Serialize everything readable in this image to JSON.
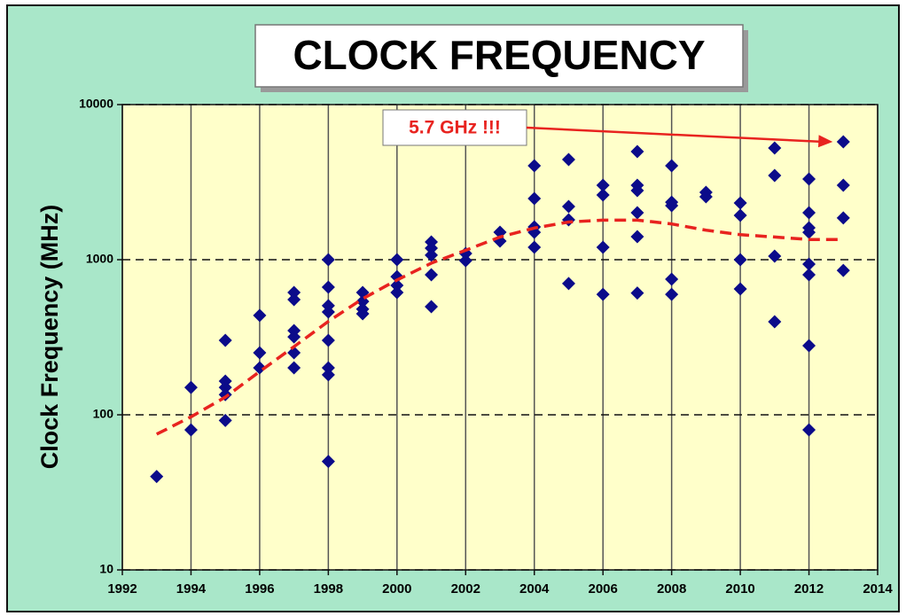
{
  "chart_data": {
    "type": "scatter",
    "title": "CLOCK FREQUENCY",
    "ylabel": "Clock Frequency (MHz)",
    "log_y": true,
    "grid": true,
    "xlim": [
      1992,
      2014
    ],
    "xticks": [
      1992,
      1994,
      1996,
      1998,
      2000,
      2002,
      2004,
      2006,
      2008,
      2010,
      2012,
      2014
    ],
    "ylim": [
      10,
      10000
    ],
    "yticks": [
      10,
      100,
      1000,
      10000
    ],
    "series": [
      {
        "color": "#0b0b8a",
        "marker": "diamond",
        "x": [
          1993,
          1994,
          1994,
          1995,
          1995,
          1995,
          1995,
          1995,
          1996,
          1996,
          1996,
          1997,
          1997,
          1997,
          1997,
          1997,
          1997,
          1998,
          1998,
          1998,
          1998,
          1998,
          1998,
          1998,
          1998,
          1999,
          1999,
          1999,
          1999,
          2000,
          2000,
          2000,
          2000,
          2001,
          2001,
          2001,
          2001,
          2001,
          2002,
          2002,
          2003,
          2003,
          2004,
          2004,
          2004,
          2004,
          2004,
          2005,
          2005,
          2005,
          2005,
          2006,
          2006,
          2006,
          2006,
          2007,
          2007,
          2007,
          2007,
          2007,
          2007,
          2008,
          2008,
          2008,
          2008,
          2008,
          2009,
          2009,
          2010,
          2010,
          2010,
          2010,
          2011,
          2011,
          2011,
          2011,
          2012,
          2012,
          2012,
          2012,
          2012,
          2012,
          2012,
          2012,
          2013,
          2013,
          2013,
          2013
        ],
        "values": [
          40,
          150,
          80,
          302,
          165,
          150,
          135,
          92,
          437,
          251,
          201,
          615,
          553,
          349,
          318,
          251,
          201,
          1000,
          665,
          505,
          460,
          302,
          201,
          181,
          50,
          615,
          538,
          480,
          448,
          1000,
          778,
          683,
          615,
          1300,
          1186,
          1069,
          800,
          498,
          1096,
          986,
          1503,
          1318,
          4036,
          2478,
          1627,
          1500,
          1202,
          4425,
          2203,
          1808,
          702,
          3020,
          2614,
          1202,
          598,
          4977,
          3020,
          2790,
          2009,
          1409,
          610,
          4036,
          2350,
          2233,
          749,
          598,
          2717,
          2545,
          2322,
          1932,
          1000,
          648,
          5248,
          3491,
          1054,
          398,
          3311,
          2009,
          1606,
          1500,
          936,
          800,
          279,
          80,
          5754,
          3020,
          1858,
          853
        ]
      },
      {
        "color": "#e8231f",
        "marker": "dashed-line",
        "x": [
          1993,
          1994,
          1995,
          1996,
          1997,
          1998,
          1999,
          2000,
          2001,
          2002,
          2003,
          2004,
          2005,
          2006,
          2007,
          2008,
          2009,
          2010,
          2011,
          2012,
          2013
        ],
        "values": [
          75,
          97,
          130,
          190,
          275,
          400,
          560,
          740,
          950,
          1150,
          1400,
          1600,
          1750,
          1800,
          1800,
          1700,
          1550,
          1450,
          1400,
          1350,
          1350
        ]
      }
    ],
    "annotations": [
      {
        "text": "5.7 GHz !!!",
        "x": 2013,
        "y": 5754
      }
    ]
  }
}
